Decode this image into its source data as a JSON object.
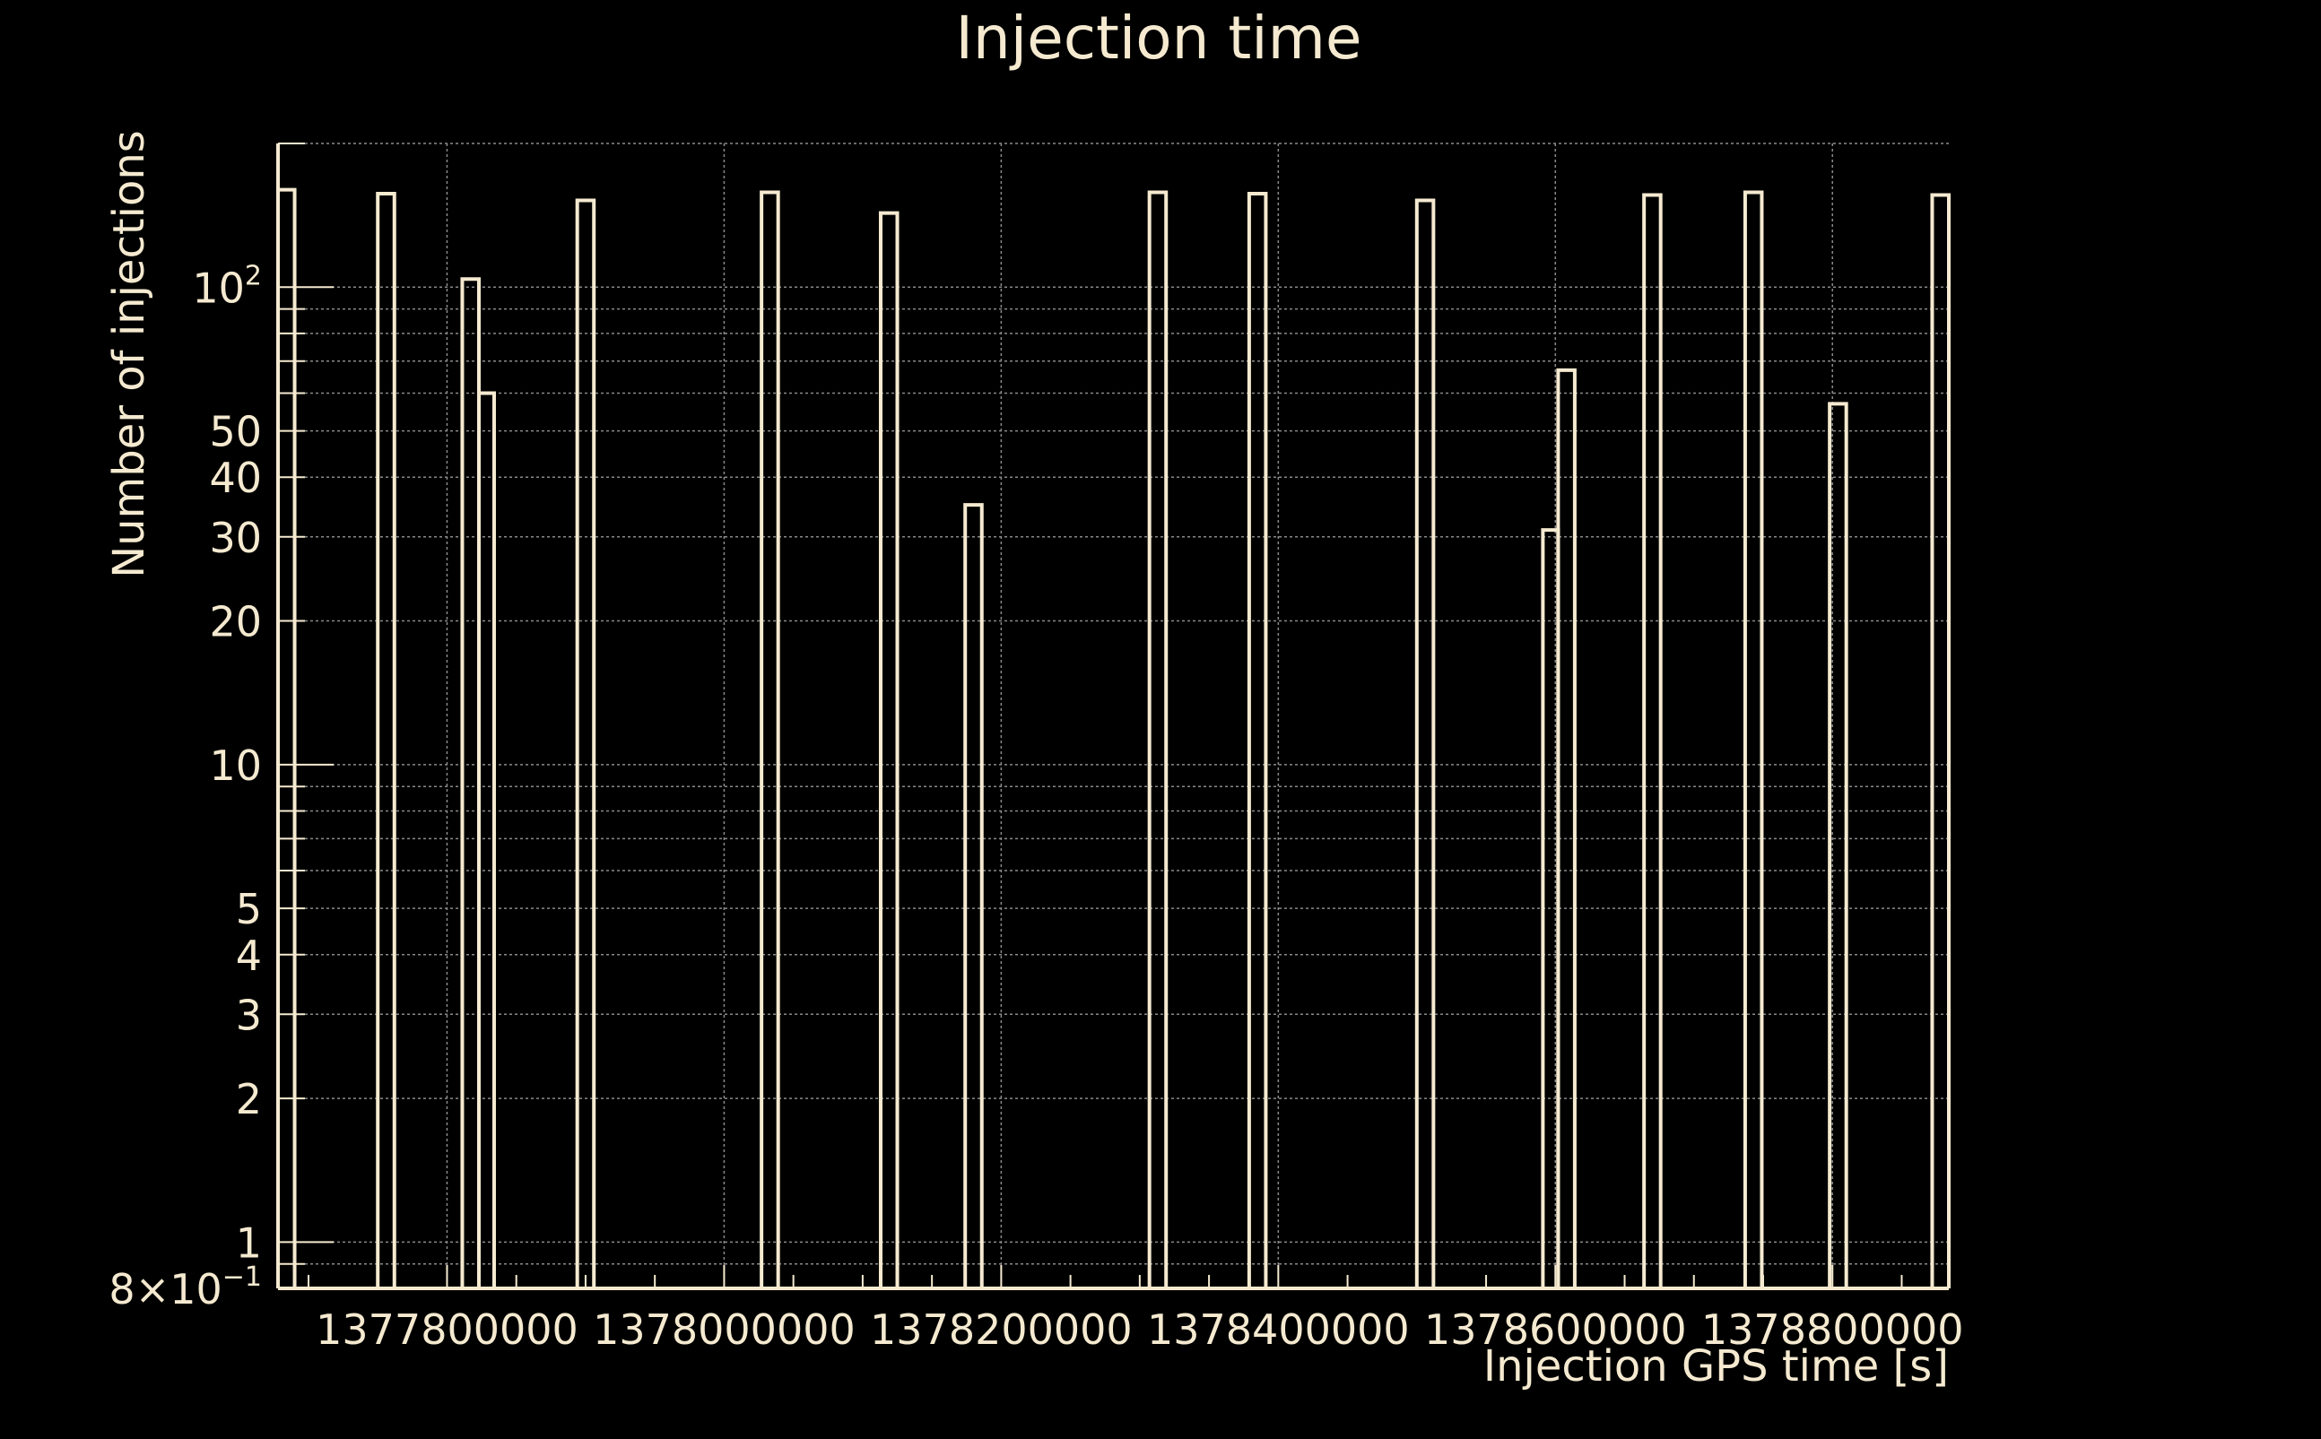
{
  "colors": {
    "background": "#000000",
    "foreground": "#f5ead0",
    "grid": "#8a8a8a"
  },
  "chart_data": {
    "type": "bar",
    "style": "step-histogram",
    "title": "Injection time",
    "xlabel": "Injection GPS time [s]",
    "ylabel": "Number of injections",
    "yscale": "log",
    "xlim": [
      1377678000,
      1378884000
    ],
    "ylim": [
      0.8,
      200
    ],
    "grid": true,
    "x_ticks": [
      {
        "value": 1377800000,
        "label": "1377800000"
      },
      {
        "value": 1378000000,
        "label": "1378000000"
      },
      {
        "value": 1378200000,
        "label": "1378200000"
      },
      {
        "value": 1378400000,
        "label": "1378400000"
      },
      {
        "value": 1378600000,
        "label": "1378600000"
      },
      {
        "value": 1378800000,
        "label": "1378800000"
      }
    ],
    "y_ticks": [
      {
        "value": 0.8,
        "label": "8×10",
        "sup": "−1"
      },
      {
        "value": 1,
        "label": "1"
      },
      {
        "value": 2,
        "label": "2"
      },
      {
        "value": 3,
        "label": "3"
      },
      {
        "value": 4,
        "label": "4"
      },
      {
        "value": 5,
        "label": "5"
      },
      {
        "value": 10,
        "label": "10"
      },
      {
        "value": 20,
        "label": "20"
      },
      {
        "value": 30,
        "label": "30"
      },
      {
        "value": 40,
        "label": "40"
      },
      {
        "value": 50,
        "label": "50"
      },
      {
        "value": 100,
        "label": "10",
        "sup": "2"
      }
    ],
    "bins": [
      {
        "x0": 1377678000,
        "x1": 1377690000,
        "value": 160
      },
      {
        "x0": 1377750000,
        "x1": 1377762000,
        "value": 157
      },
      {
        "x0": 1377811000,
        "x1": 1377823000,
        "value": 104
      },
      {
        "x0": 1377823000,
        "x1": 1377834000,
        "value": 60
      },
      {
        "x0": 1377894000,
        "x1": 1377906000,
        "value": 152
      },
      {
        "x0": 1378027000,
        "x1": 1378039000,
        "value": 158
      },
      {
        "x0": 1378113000,
        "x1": 1378125000,
        "value": 143
      },
      {
        "x0": 1378174000,
        "x1": 1378186000,
        "value": 35
      },
      {
        "x0": 1378307000,
        "x1": 1378319000,
        "value": 158
      },
      {
        "x0": 1378379000,
        "x1": 1378391000,
        "value": 157
      },
      {
        "x0": 1378500000,
        "x1": 1378512000,
        "value": 152
      },
      {
        "x0": 1378591000,
        "x1": 1378602000,
        "value": 31
      },
      {
        "x0": 1378602000,
        "x1": 1378614000,
        "value": 67
      },
      {
        "x0": 1378664000,
        "x1": 1378676000,
        "value": 156
      },
      {
        "x0": 1378737000,
        "x1": 1378749000,
        "value": 158
      },
      {
        "x0": 1378798000,
        "x1": 1378810000,
        "value": 57
      },
      {
        "x0": 1378872000,
        "x1": 1378884000,
        "value": 156
      }
    ]
  }
}
